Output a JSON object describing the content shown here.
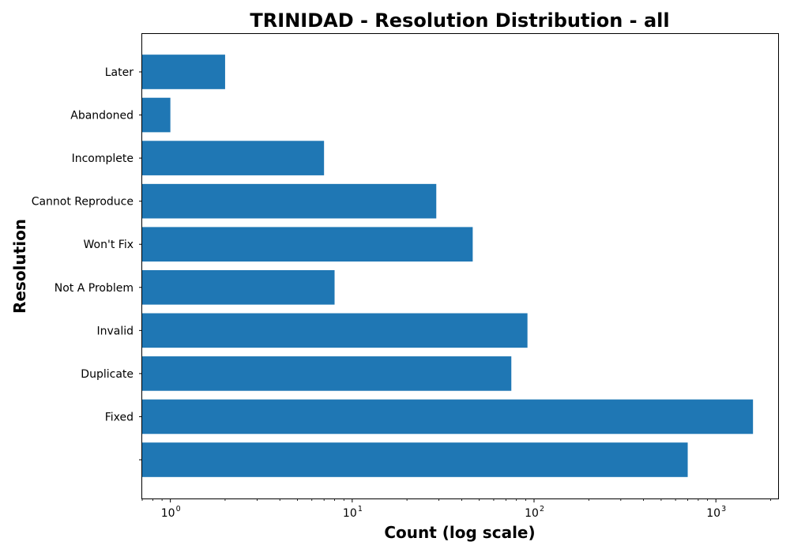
{
  "chart_data": {
    "type": "bar",
    "orientation": "horizontal",
    "title": "TRINIDAD - Resolution Distribution - all",
    "xlabel": "Count (log scale)",
    "ylabel": "Resolution",
    "x_scale": "log",
    "xlim": [
      0.7,
      2200
    ],
    "x_ticks": [
      {
        "value": 1,
        "base": "10",
        "exp": "0"
      },
      {
        "value": 10,
        "base": "10",
        "exp": "1"
      },
      {
        "value": 100,
        "base": "10",
        "exp": "2"
      },
      {
        "value": 1000,
        "base": "10",
        "exp": "3"
      }
    ],
    "categories": [
      "",
      "Fixed",
      "Duplicate",
      "Invalid",
      "Not A Problem",
      "Won't Fix",
      "Cannot Reproduce",
      "Incomplete",
      "Abandoned",
      "Later"
    ],
    "values": [
      700,
      1600,
      75,
      92,
      8,
      46,
      29,
      7,
      1,
      2
    ],
    "bar_color": "#1f77b4",
    "grid": false,
    "legend": "none"
  }
}
